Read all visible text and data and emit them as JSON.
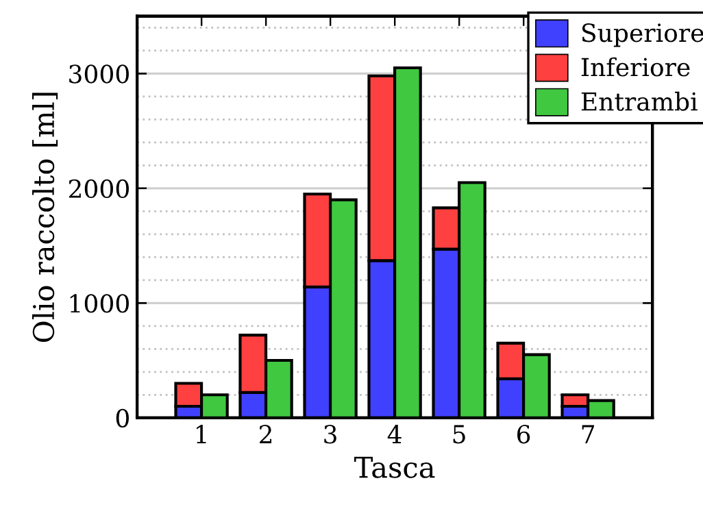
{
  "chart_data": [
    {
      "type": "bar",
      "xlabel": "Tasca",
      "ylabel": "Olio raccolto [ml]",
      "categories": [
        "1",
        "2",
        "3",
        "4",
        "5",
        "6",
        "7"
      ],
      "stacked": true,
      "series": [
        {
          "name": "Superiore",
          "color": "#4040ff",
          "values": [
            100,
            220,
            1140,
            1370,
            1470,
            340,
            100
          ]
        },
        {
          "name": "Inferiore",
          "color": "#ff4040",
          "values": [
            200,
            500,
            810,
            1610,
            360,
            310,
            100
          ]
        }
      ],
      "ylim": [
        0,
        3500
      ],
      "yticks": [
        0,
        1000,
        2000,
        3000
      ],
      "grid": "y",
      "legend": "top right"
    },
    {
      "type": "bar",
      "categories": [
        "1",
        "2",
        "3",
        "4",
        "5",
        "6",
        "7"
      ],
      "series": [
        {
          "name": "Entrambi",
          "color": "#40c840",
          "values": [
            200,
            500,
            1900,
            3050,
            2050,
            550,
            150
          ]
        }
      ],
      "ylim": [
        0,
        3500
      ],
      "yticks": [
        0,
        1000,
        2000,
        3000
      ],
      "tick_labels": false,
      "legend": "top right"
    }
  ]
}
